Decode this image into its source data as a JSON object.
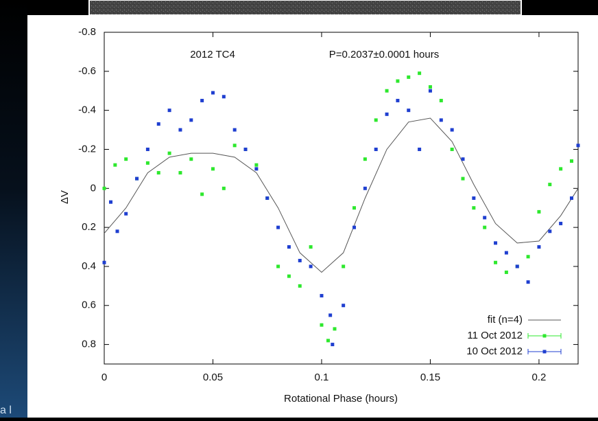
{
  "chart_data": {
    "type": "scatter",
    "corner_text": "a l",
    "annotations": [
      "2012 TC4",
      "P=0.2037±0.0001 hours"
    ],
    "x_label": "Rotational Phase (hours)",
    "y_label": "ΔV",
    "xlim": [
      0,
      0.218
    ],
    "xticks": [
      0,
      0.05,
      0.1,
      0.15,
      0.2
    ],
    "ylim": [
      -0.8,
      0.9
    ],
    "yticks": [
      -0.8,
      -0.6,
      -0.4,
      -0.2,
      0,
      0.2,
      0.4,
      0.6,
      0.8
    ],
    "y_inverted": true,
    "legend": "lower right",
    "series": [
      {
        "name": "fit (n=4)",
        "color": "#555555",
        "style": "line",
        "x": [
          0,
          0.01,
          0.02,
          0.03,
          0.04,
          0.05,
          0.06,
          0.07,
          0.08,
          0.09,
          0.1,
          0.11,
          0.12,
          0.13,
          0.14,
          0.15,
          0.16,
          0.17,
          0.18,
          0.19,
          0.2,
          0.21,
          0.218
        ],
        "values": [
          0.23,
          0.1,
          -0.08,
          -0.16,
          -0.18,
          -0.18,
          -0.16,
          -0.08,
          0.1,
          0.33,
          0.43,
          0.33,
          0.05,
          -0.2,
          -0.34,
          -0.36,
          -0.24,
          -0.02,
          0.18,
          0.28,
          0.27,
          0.14,
          0
        ]
      },
      {
        "name": "11 Oct 2012",
        "color": "#2ee82e",
        "style": "points",
        "x": [
          0,
          0.005,
          0.01,
          0.015,
          0.02,
          0.025,
          0.03,
          0.035,
          0.04,
          0.045,
          0.05,
          0.055,
          0.06,
          0.065,
          0.07,
          0.075,
          0.08,
          0.085,
          0.09,
          0.095,
          0.1,
          0.103,
          0.106,
          0.11,
          0.115,
          0.12,
          0.125,
          0.13,
          0.135,
          0.14,
          0.145,
          0.15,
          0.155,
          0.16,
          0.165,
          0.17,
          0.175,
          0.18,
          0.185,
          0.19,
          0.195,
          0.2,
          0.205,
          0.21,
          0.215
        ],
        "values": [
          0,
          -0.12,
          -0.15,
          -0.05,
          -0.13,
          -0.08,
          -0.18,
          -0.08,
          -0.15,
          0.03,
          -0.1,
          0,
          -0.22,
          -0.2,
          -0.12,
          0.05,
          0.4,
          0.45,
          0.5,
          0.3,
          0.7,
          0.78,
          0.72,
          0.4,
          0.1,
          -0.15,
          -0.35,
          -0.5,
          -0.55,
          -0.57,
          -0.59,
          -0.52,
          -0.45,
          -0.2,
          -0.05,
          0.1,
          0.2,
          0.38,
          0.43,
          0.4,
          0.35,
          0.12,
          -0.02,
          -0.1,
          -0.14
        ]
      },
      {
        "name": "10 Oct 2012",
        "color": "#1f3fd0",
        "style": "points",
        "x": [
          0,
          0.003,
          0.006,
          0.01,
          0.015,
          0.02,
          0.025,
          0.03,
          0.035,
          0.04,
          0.045,
          0.05,
          0.055,
          0.06,
          0.065,
          0.07,
          0.075,
          0.08,
          0.085,
          0.09,
          0.095,
          0.1,
          0.104,
          0.105,
          0.11,
          0.115,
          0.12,
          0.125,
          0.13,
          0.135,
          0.14,
          0.145,
          0.15,
          0.155,
          0.16,
          0.165,
          0.17,
          0.175,
          0.18,
          0.185,
          0.19,
          0.195,
          0.2,
          0.205,
          0.21,
          0.215,
          0.218
        ],
        "values": [
          0.38,
          0.07,
          0.22,
          0.13,
          -0.05,
          -0.2,
          -0.33,
          -0.4,
          -0.3,
          -0.35,
          -0.45,
          -0.49,
          -0.47,
          -0.3,
          -0.2,
          -0.1,
          0.05,
          0.2,
          0.3,
          0.37,
          0.4,
          0.55,
          0.65,
          0.8,
          0.6,
          0.2,
          0,
          -0.2,
          -0.38,
          -0.45,
          -0.4,
          -0.2,
          -0.5,
          -0.35,
          -0.3,
          -0.15,
          0.05,
          0.15,
          0.28,
          0.33,
          0.4,
          0.48,
          0.3,
          0.22,
          0.18,
          0.05,
          -0.22
        ]
      }
    ]
  }
}
